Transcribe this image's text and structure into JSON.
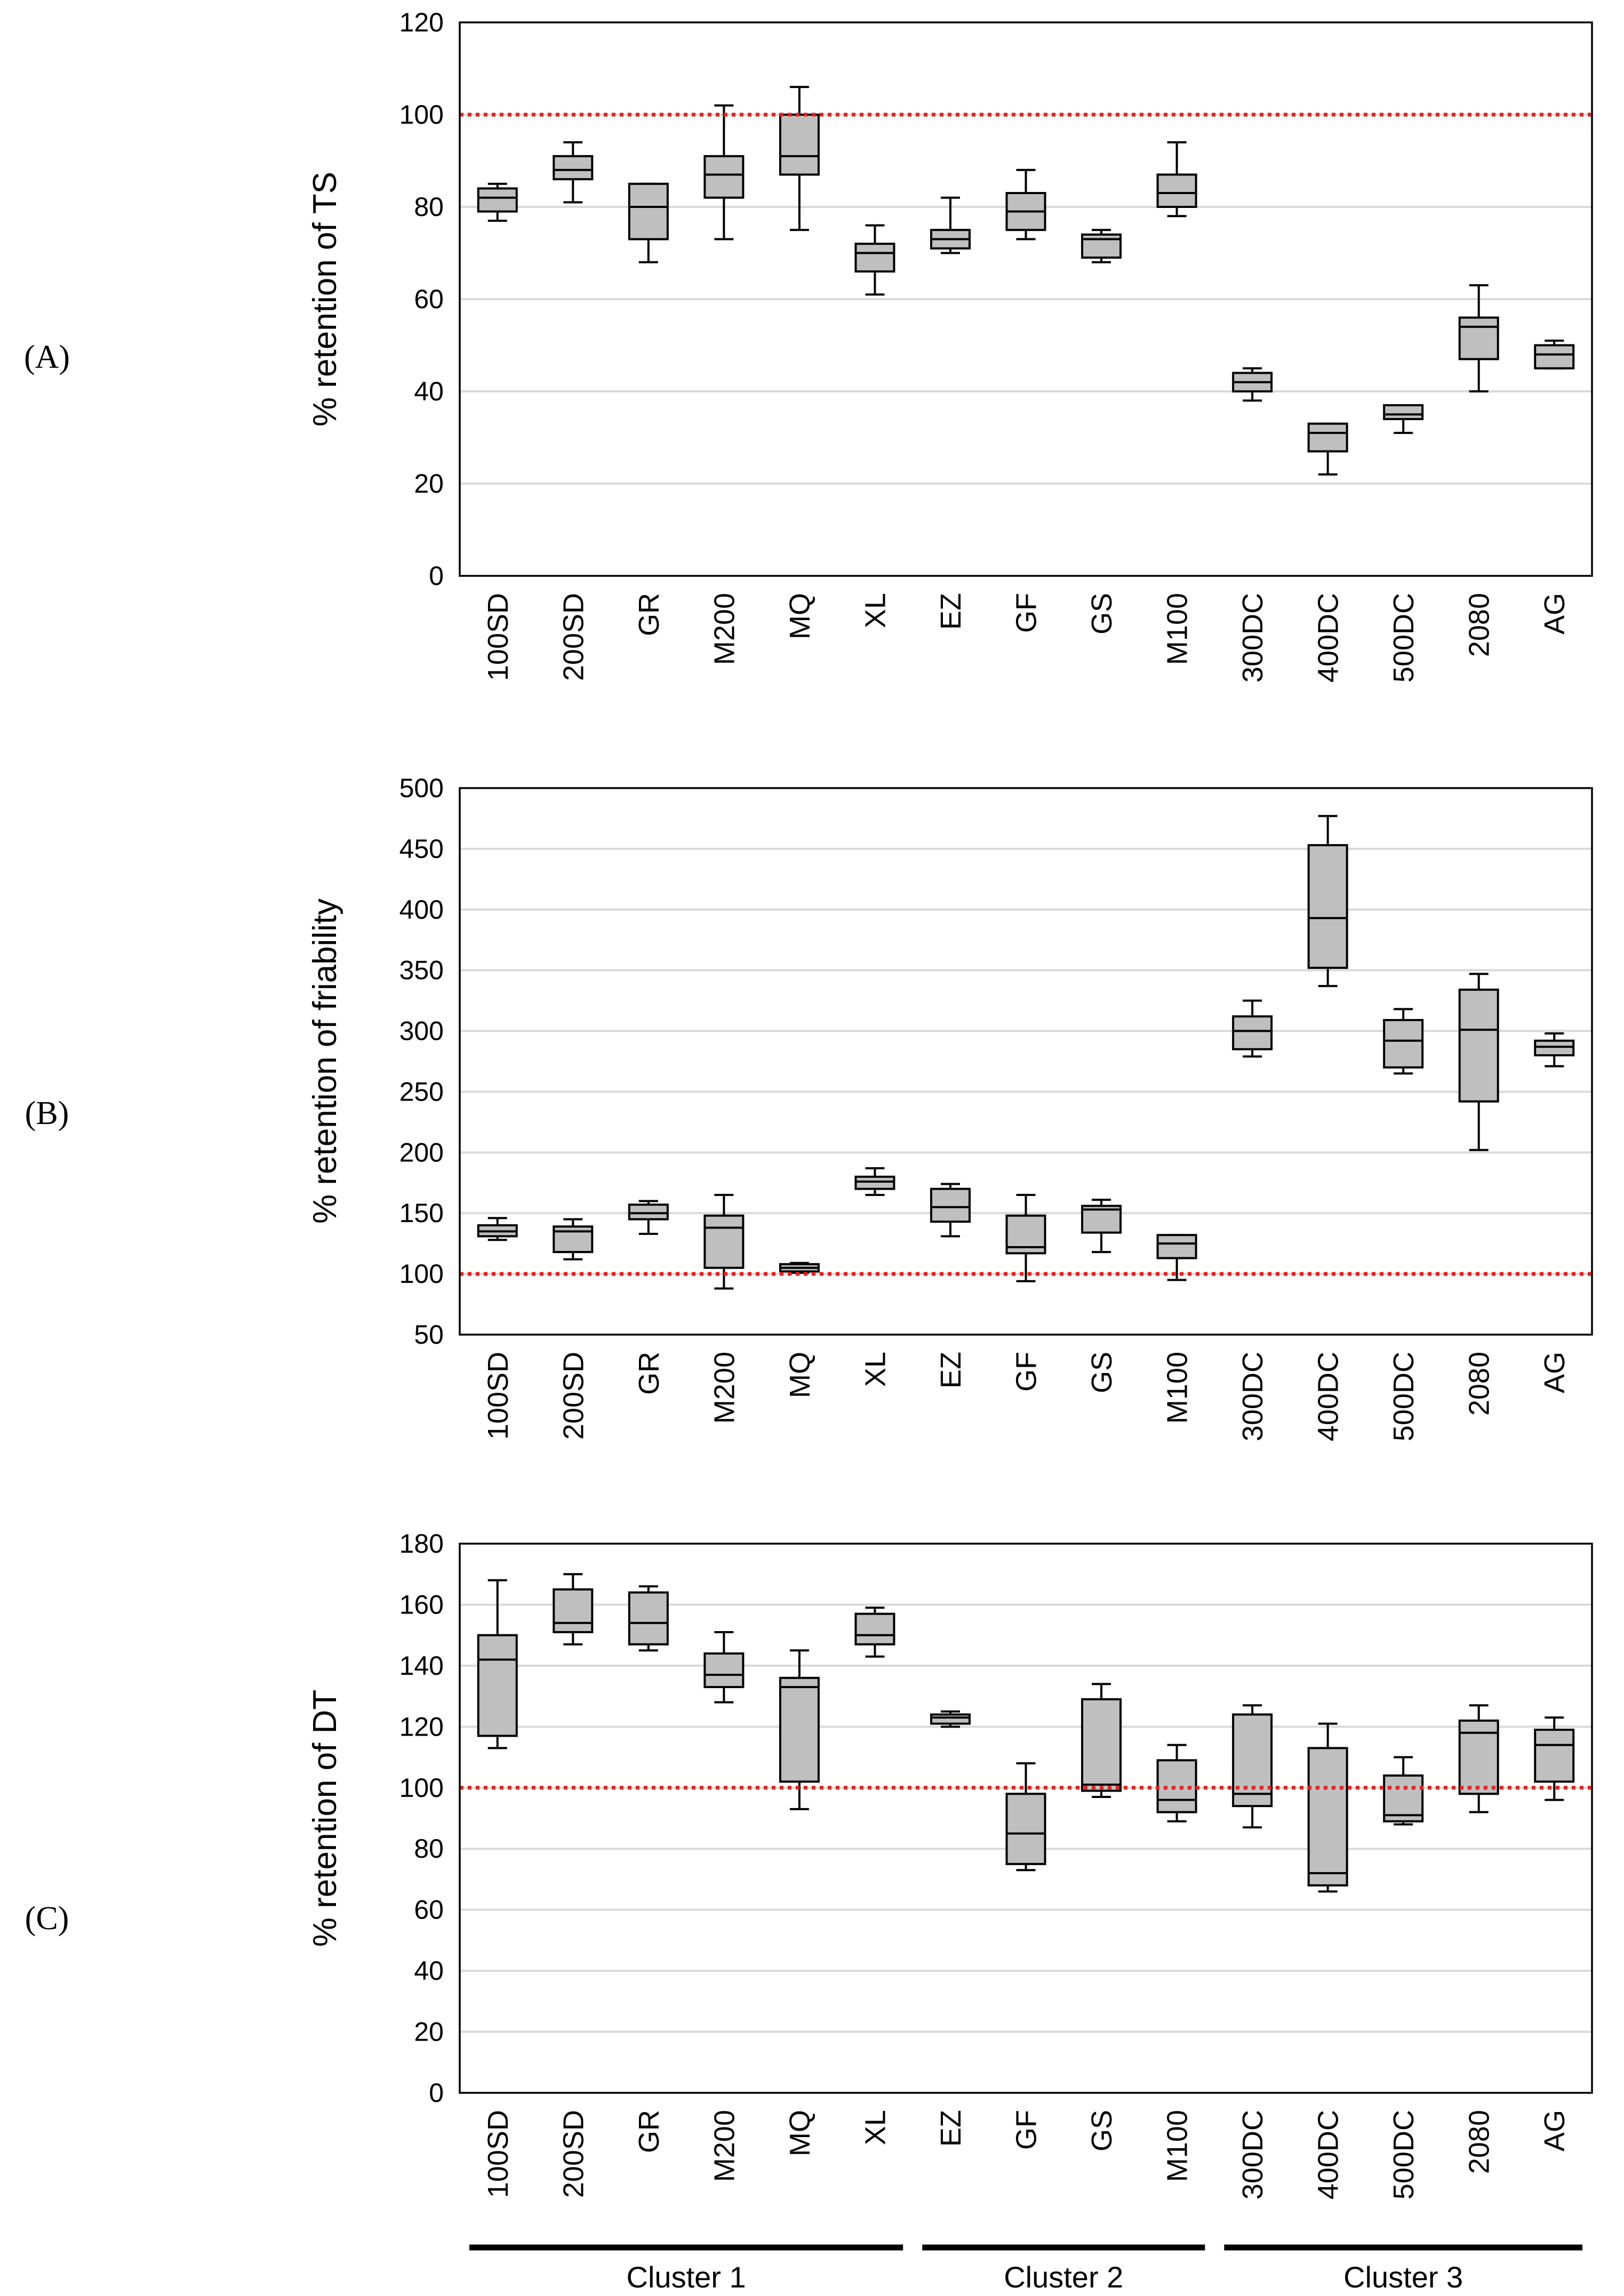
{
  "chart_data": [
    {
      "type": "boxplot",
      "panel_label": "(A)",
      "ylabel": "% retention of TS",
      "ylim": [
        0,
        120
      ],
      "yticks": [
        0,
        20,
        40,
        60,
        80,
        100,
        120
      ],
      "reference_line": 100,
      "categories": [
        "100SD",
        "200SD",
        "GR",
        "M200",
        "MQ",
        "XL",
        "EZ",
        "GF",
        "GS",
        "M100",
        "300DC",
        "400DC",
        "500DC",
        "2080",
        "AG"
      ],
      "boxes": [
        {
          "min": 77,
          "q1": 79,
          "median": 82,
          "q3": 84,
          "max": 85
        },
        {
          "min": 81,
          "q1": 86,
          "median": 88,
          "q3": 91,
          "max": 94
        },
        {
          "min": 68,
          "q1": 73,
          "median": 80,
          "q3": 85,
          "max": 85
        },
        {
          "min": 73,
          "q1": 82,
          "median": 87,
          "q3": 91,
          "max": 102
        },
        {
          "min": 75,
          "q1": 87,
          "median": 91,
          "q3": 100,
          "max": 106
        },
        {
          "min": 61,
          "q1": 66,
          "median": 70,
          "q3": 72,
          "max": 76
        },
        {
          "min": 70,
          "q1": 71,
          "median": 73,
          "q3": 75,
          "max": 82
        },
        {
          "min": 73,
          "q1": 75,
          "median": 79,
          "q3": 83,
          "max": 88
        },
        {
          "min": 68,
          "q1": 69,
          "median": 73,
          "q3": 74,
          "max": 75
        },
        {
          "min": 78,
          "q1": 80,
          "median": 83,
          "q3": 87,
          "max": 94
        },
        {
          "min": 38,
          "q1": 40,
          "median": 42,
          "q3": 44,
          "max": 45
        },
        {
          "min": 22,
          "q1": 27,
          "median": 31,
          "q3": 33,
          "max": 33
        },
        {
          "min": 31,
          "q1": 34,
          "median": 35,
          "q3": 37,
          "max": 37
        },
        {
          "min": 40,
          "q1": 47,
          "median": 54,
          "q3": 56,
          "max": 63
        },
        {
          "min": 45,
          "q1": 45,
          "median": 48,
          "q3": 50,
          "max": 51
        }
      ]
    },
    {
      "type": "boxplot",
      "panel_label": "(B)",
      "ylabel": "% retention of friability",
      "ylim": [
        50,
        500
      ],
      "yticks": [
        50,
        100,
        150,
        200,
        250,
        300,
        350,
        400,
        450,
        500
      ],
      "reference_line": 100,
      "categories": [
        "100SD",
        "200SD",
        "GR",
        "M200",
        "MQ",
        "XL",
        "EZ",
        "GF",
        "GS",
        "M100",
        "300DC",
        "400DC",
        "500DC",
        "2080",
        "AG"
      ],
      "boxes": [
        {
          "min": 128,
          "q1": 131,
          "median": 135,
          "q3": 140,
          "max": 146
        },
        {
          "min": 112,
          "q1": 118,
          "median": 135,
          "q3": 139,
          "max": 145
        },
        {
          "min": 133,
          "q1": 145,
          "median": 150,
          "q3": 157,
          "max": 160
        },
        {
          "min": 88,
          "q1": 105,
          "median": 138,
          "q3": 148,
          "max": 165
        },
        {
          "min": 101,
          "q1": 102,
          "median": 105,
          "q3": 108,
          "max": 109
        },
        {
          "min": 165,
          "q1": 170,
          "median": 176,
          "q3": 180,
          "max": 187
        },
        {
          "min": 131,
          "q1": 143,
          "median": 155,
          "q3": 170,
          "max": 174
        },
        {
          "min": 94,
          "q1": 117,
          "median": 122,
          "q3": 148,
          "max": 165
        },
        {
          "min": 118,
          "q1": 134,
          "median": 153,
          "q3": 156,
          "max": 161
        },
        {
          "min": 95,
          "q1": 113,
          "median": 125,
          "q3": 132,
          "max": 132
        },
        {
          "min": 279,
          "q1": 285,
          "median": 300,
          "q3": 312,
          "max": 325
        },
        {
          "min": 337,
          "q1": 352,
          "median": 393,
          "q3": 453,
          "max": 477
        },
        {
          "min": 265,
          "q1": 270,
          "median": 292,
          "q3": 309,
          "max": 318
        },
        {
          "min": 202,
          "q1": 242,
          "median": 301,
          "q3": 334,
          "max": 347
        },
        {
          "min": 271,
          "q1": 280,
          "median": 287,
          "q3": 292,
          "max": 298
        }
      ]
    },
    {
      "type": "boxplot",
      "panel_label": "(C)",
      "ylabel": "% retention of DT",
      "ylim": [
        0,
        180
      ],
      "yticks": [
        0,
        20,
        40,
        60,
        80,
        100,
        120,
        140,
        160,
        180
      ],
      "reference_line": 100,
      "categories": [
        "100SD",
        "200SD",
        "GR",
        "M200",
        "MQ",
        "XL",
        "EZ",
        "GF",
        "GS",
        "M100",
        "300DC",
        "400DC",
        "500DC",
        "2080",
        "AG"
      ],
      "boxes": [
        {
          "min": 113,
          "q1": 117,
          "median": 142,
          "q3": 150,
          "max": 168
        },
        {
          "min": 147,
          "q1": 151,
          "median": 154,
          "q3": 165,
          "max": 170
        },
        {
          "min": 145,
          "q1": 147,
          "median": 154,
          "q3": 164,
          "max": 166
        },
        {
          "min": 128,
          "q1": 133,
          "median": 137,
          "q3": 144,
          "max": 151
        },
        {
          "min": 93,
          "q1": 102,
          "median": 133,
          "q3": 136,
          "max": 145
        },
        {
          "min": 143,
          "q1": 147,
          "median": 150,
          "q3": 157,
          "max": 159
        },
        {
          "min": 120,
          "q1": 121,
          "median": 123,
          "q3": 124,
          "max": 125
        },
        {
          "min": 73,
          "q1": 75,
          "median": 85,
          "q3": 98,
          "max": 108
        },
        {
          "min": 97,
          "q1": 99,
          "median": 101,
          "q3": 129,
          "max": 134
        },
        {
          "min": 89,
          "q1": 92,
          "median": 96,
          "q3": 109,
          "max": 114
        },
        {
          "min": 87,
          "q1": 94,
          "median": 98,
          "q3": 124,
          "max": 127
        },
        {
          "min": 66,
          "q1": 68,
          "median": 72,
          "q3": 113,
          "max": 121
        },
        {
          "min": 88,
          "q1": 89,
          "median": 91,
          "q3": 104,
          "max": 110
        },
        {
          "min": 92,
          "q1": 98,
          "median": 118,
          "q3": 122,
          "max": 127
        },
        {
          "min": 96,
          "q1": 102,
          "median": 114,
          "q3": 119,
          "max": 123
        }
      ],
      "clusters": [
        {
          "label": "Cluster 1",
          "from": "100SD",
          "to": "XL"
        },
        {
          "label": "Cluster 2",
          "from": "EZ",
          "to": "M100"
        },
        {
          "label": "Cluster 3",
          "from": "300DC",
          "to": "AG"
        }
      ]
    }
  ]
}
